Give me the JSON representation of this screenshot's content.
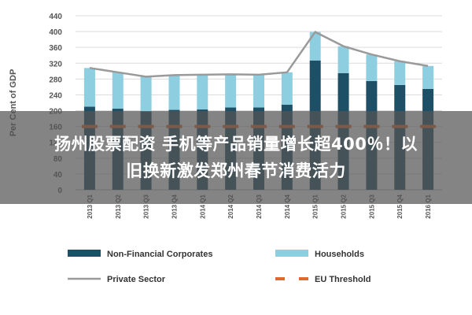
{
  "chart_data": {
    "type": "bar",
    "title": "",
    "ylabel": "Per Cent of GDP",
    "xlabel": "",
    "ylim": [
      0,
      440
    ],
    "yticks": [
      0,
      40,
      80,
      120,
      160,
      200,
      240,
      280,
      320,
      360,
      400,
      440
    ],
    "categories": [
      "2013 Q1",
      "2013 Q2",
      "2013 Q3",
      "2013 Q4",
      "2014 Q1",
      "2014 Q2",
      "2014 Q3",
      "2014 Q4",
      "2015 Q1",
      "2015 Q2",
      "2015 Q3",
      "2015 Q4",
      "2016 Q1"
    ],
    "series": [
      {
        "name": "Non-Financial Corporates",
        "kind": "stacked-bar",
        "color": "#1d4f66",
        "values": [
          210,
          205,
          198,
          202,
          203,
          208,
          208,
          215,
          327,
          295,
          275,
          265,
          255
        ]
      },
      {
        "name": "Households",
        "kind": "stacked-bar",
        "color": "#8dcfe0",
        "values": [
          98,
          92,
          88,
          88,
          88,
          84,
          83,
          82,
          72,
          68,
          67,
          60,
          58
        ]
      },
      {
        "name": "Private Sector",
        "kind": "line",
        "color": "#9a9a9a",
        "values": [
          308,
          297,
          286,
          290,
          291,
          292,
          291,
          297,
          399,
          363,
          342,
          325,
          313
        ]
      },
      {
        "name": "EU Threshold",
        "kind": "dashed-line",
        "color": "#e06a2c",
        "values": [
          160,
          160,
          160,
          160,
          160,
          160,
          160,
          160,
          160,
          160,
          160,
          160,
          160
        ]
      }
    ],
    "legend_position": "bottom",
    "grid": true
  },
  "overlay": {
    "line1": "扬州股票配资 手机等产品销量增长超400％！以",
    "line2": "旧换新激发郑州春节消费活力"
  }
}
